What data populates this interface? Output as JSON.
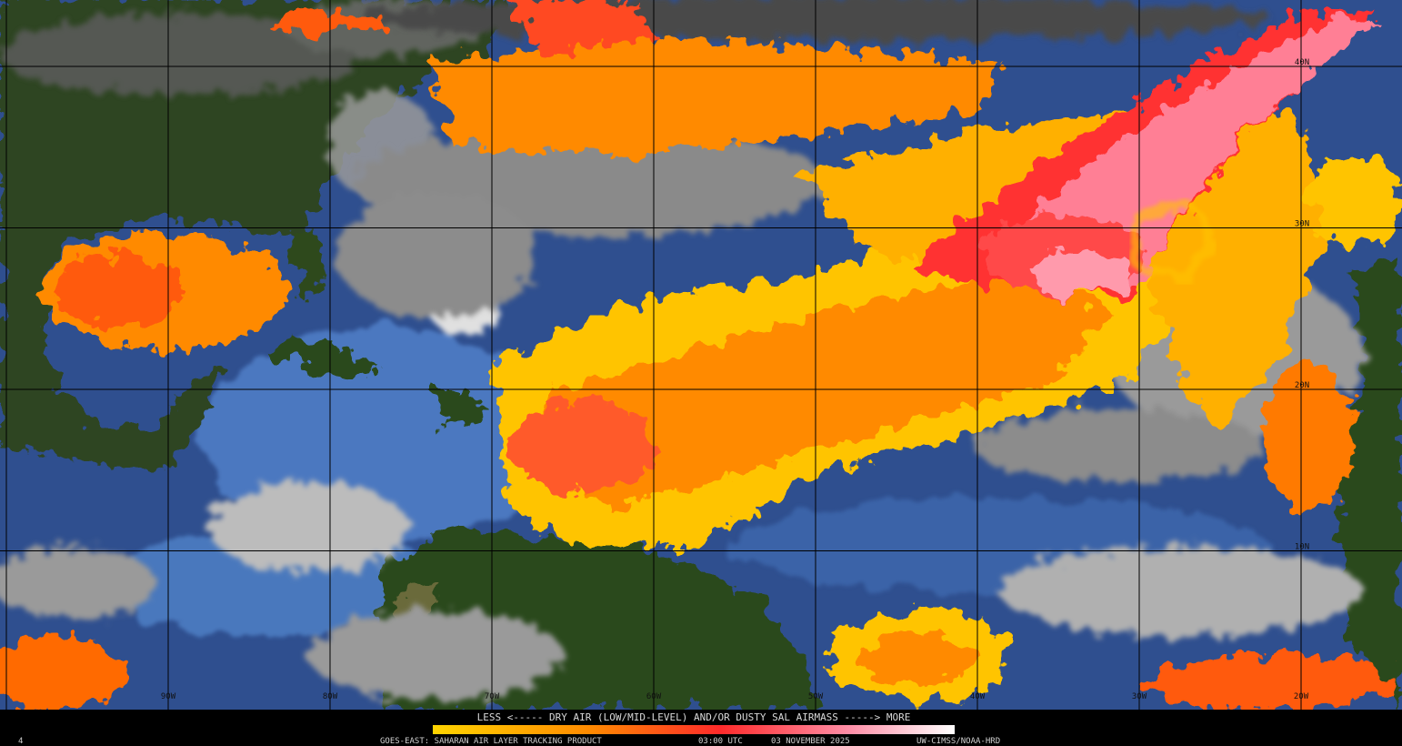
{
  "legend": {
    "caption": "LESS <----- DRY AIR (LOW/MID-LEVEL) AND/OR DUSTY SAL AIRMASS -----> MORE",
    "frame": "4",
    "product": "GOES-EAST: SAHARAN AIR LAYER TRACKING PRODUCT",
    "time": "03:00 UTC",
    "date": "03 NOVEMBER 2025",
    "credit": "UW-CIMSS/NOAA-HRD"
  },
  "map": {
    "longitude_labels": [
      "90W",
      "80W",
      "70W",
      "60W",
      "50W",
      "40W",
      "30W",
      "20W"
    ],
    "latitude_labels": [
      "40N",
      "30N",
      "20N",
      "10N"
    ]
  }
}
